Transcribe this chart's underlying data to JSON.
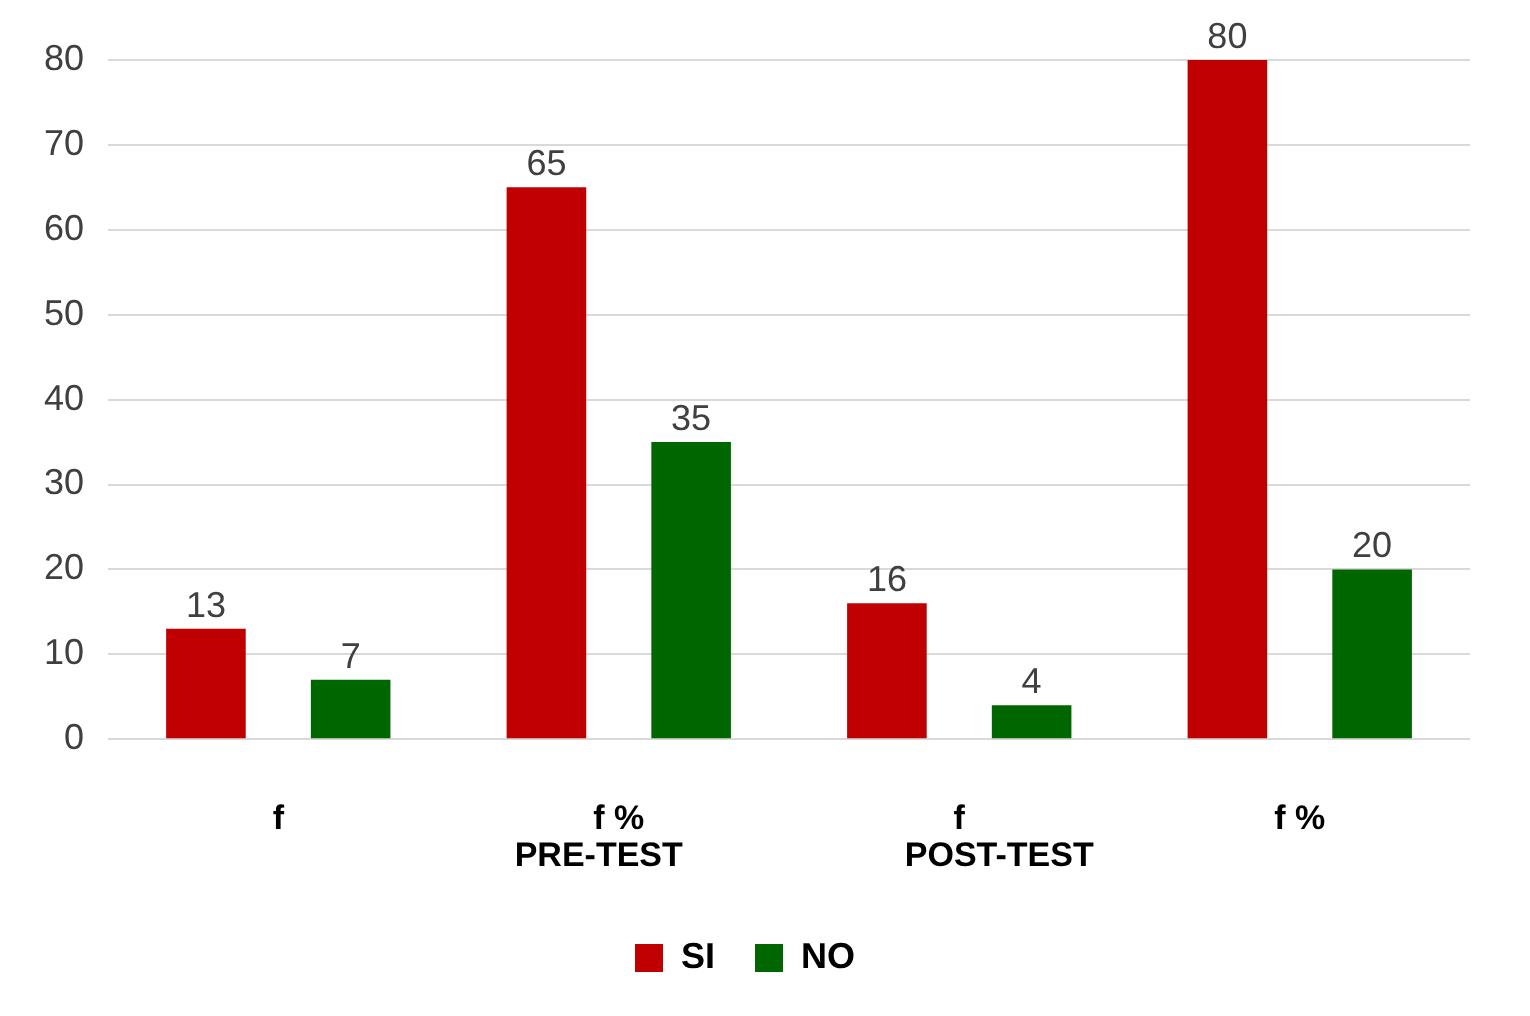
{
  "chart_data": {
    "type": "bar",
    "categories": [
      "f",
      "f %",
      "f",
      "f %"
    ],
    "series": [
      {
        "name": "SI",
        "color": "#c00000",
        "values": [
          13,
          65,
          16,
          80
        ]
      },
      {
        "name": "NO",
        "color": "#006600",
        "values": [
          7,
          35,
          4,
          20
        ]
      }
    ],
    "ylim": [
      0,
      80
    ],
    "yticks": [
      0,
      10,
      20,
      30,
      40,
      50,
      60,
      70,
      80
    ],
    "grid": "y",
    "legend": "bottom",
    "data_labels": true,
    "annotations": [
      "PRE-TEST",
      "POST-TEST"
    ]
  }
}
